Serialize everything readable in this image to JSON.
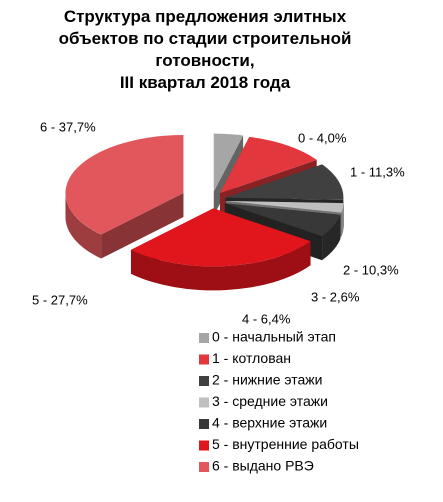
{
  "chart_data": {
    "type": "pie3d",
    "title": "Структура предложения элитных\nобъектов по стадии строительной\nготовности,\nIII квартал 2018 года",
    "categories": [
      "0 - начальный этап",
      "1 - котлован",
      "2 -  нижние этажи",
      "3 -  средние этажи",
      "4 - верхние этажи",
      "5 - внутренние работы",
      "6 - выдано РВЭ"
    ],
    "values": [
      4.0,
      11.3,
      10.3,
      2.6,
      6.4,
      27.7,
      37.7
    ],
    "value_labels": [
      "0 - 4,0%",
      "1 - 11,3%",
      "2 - 10,3%",
      "3 - 2,6%",
      "4 - 6,4%",
      "5 - 27,7%",
      "6 - 37,7%"
    ],
    "colors": [
      "#a6a6a6",
      "#e2383d",
      "#404040",
      "#bfbfbf",
      "#383838",
      "#e0161c",
      "#e2575c"
    ],
    "legend": "bottom-right"
  }
}
